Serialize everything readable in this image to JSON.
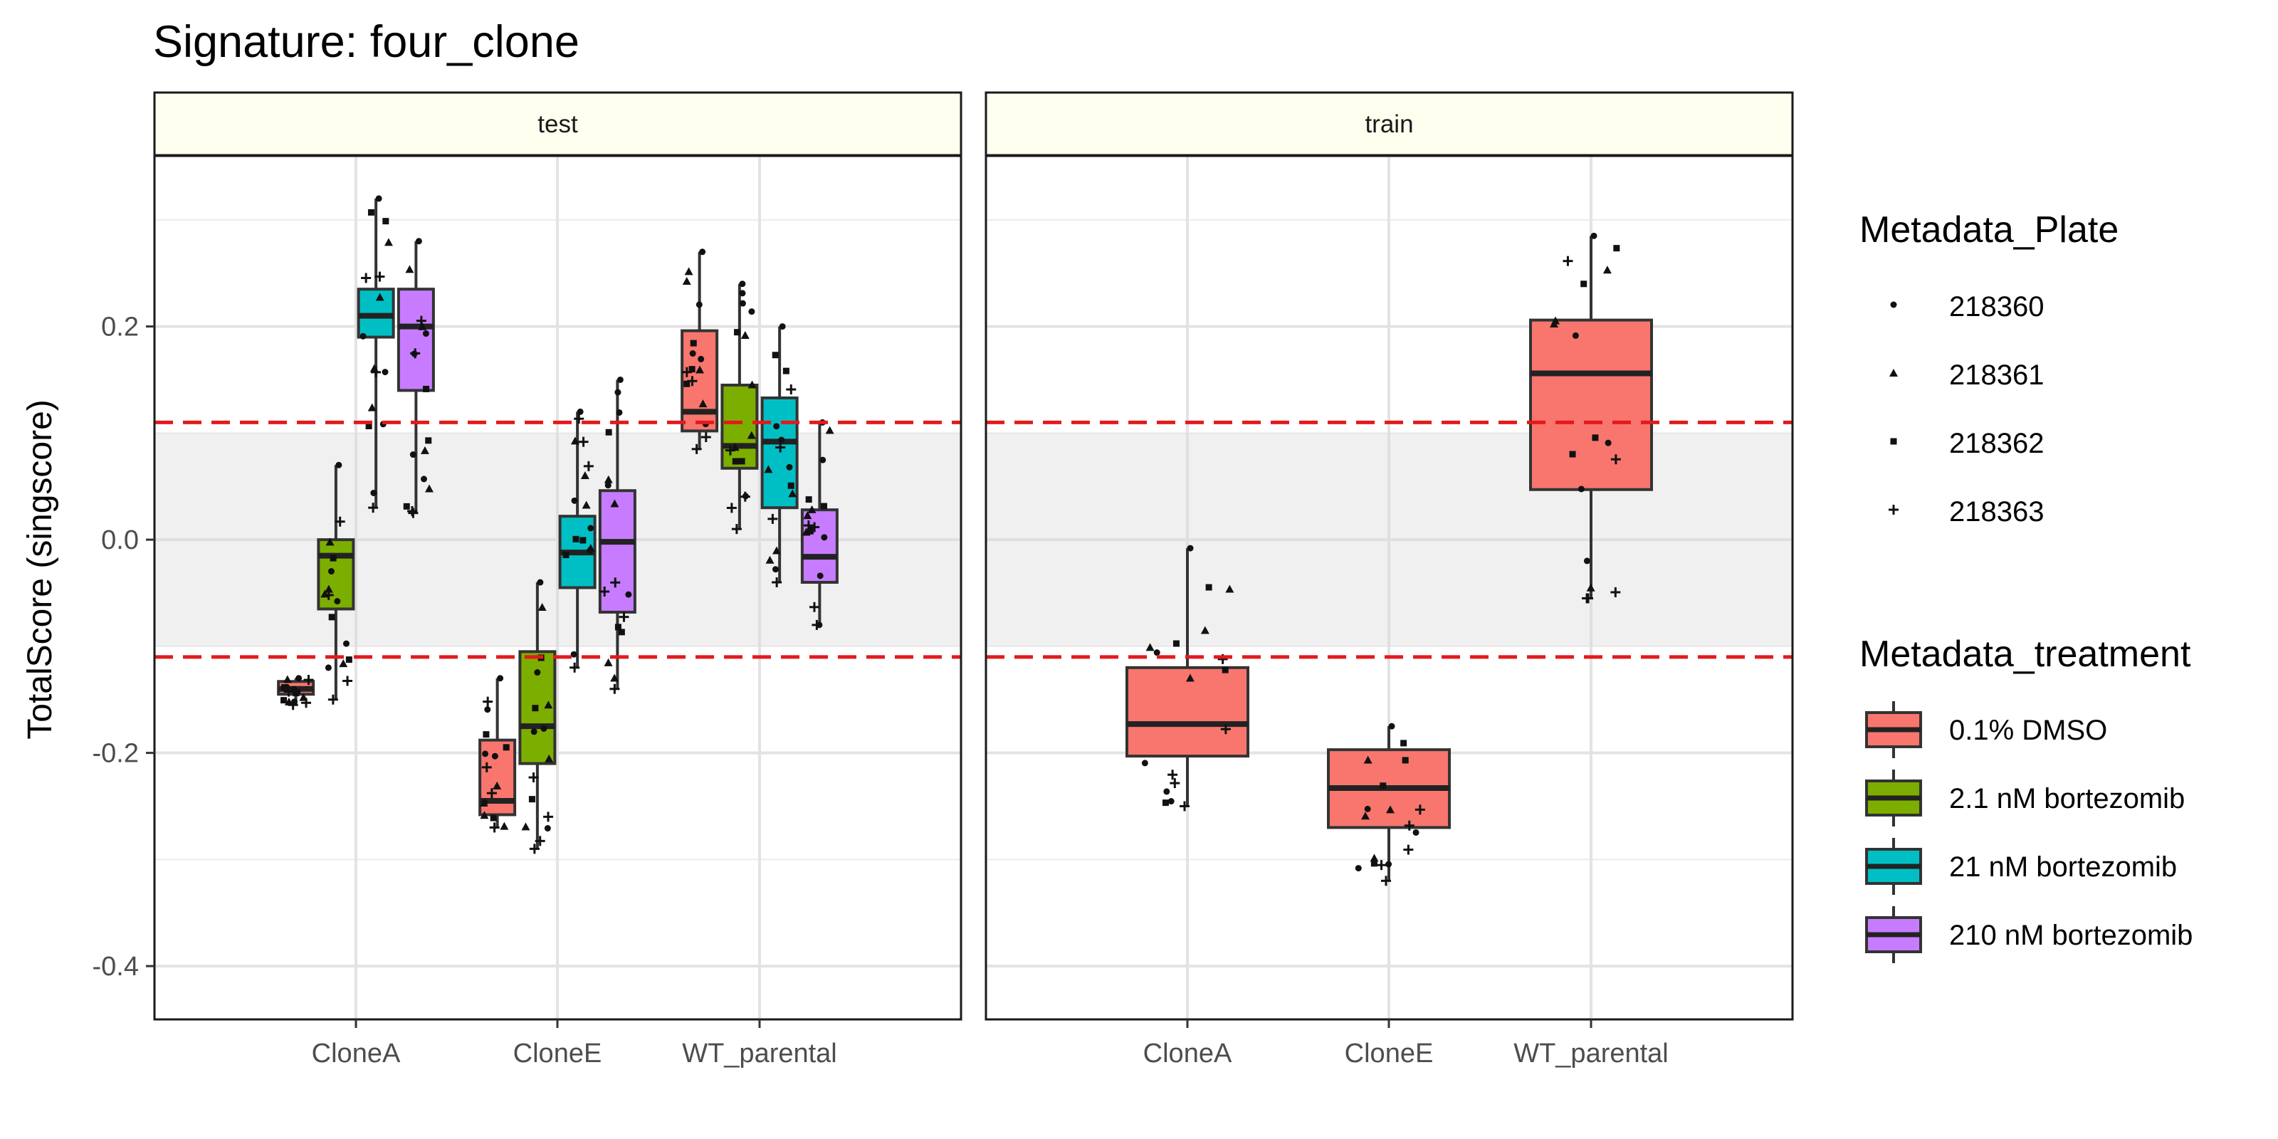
{
  "chart_data": {
    "type": "box",
    "title": "Signature: four_clone",
    "ylabel": "TotalScore (singscore)",
    "xlabel": "",
    "ylim": [
      -0.45,
      0.36
    ],
    "yticks": [
      0.2,
      0.0,
      -0.2,
      -0.4
    ],
    "ytick_labels": [
      "0.2",
      "0.0",
      "-0.2",
      "-0.4"
    ],
    "categories": [
      "CloneA",
      "CloneE",
      "WT_parental"
    ],
    "threshold_lines": [
      0.11,
      -0.11
    ],
    "band": [
      -0.1,
      0.1
    ],
    "colors": {
      "0.1% DMSO": "#F8766D",
      "2.1 nM bortezomib": "#7CAE00",
      "21 nM bortezomib": "#00BFC4",
      "210 nM bortezomib": "#C77CFF",
      "threshold": "#E31A1C"
    },
    "panels": [
      {
        "strip": "test",
        "boxes": [
          {
            "category": "CloneA",
            "treatment": "0.1% DMSO",
            "min": -0.155,
            "q1": -0.145,
            "median": -0.14,
            "q3": -0.133,
            "max": -0.13
          },
          {
            "category": "CloneA",
            "treatment": "2.1 nM bortezomib",
            "min": -0.15,
            "q1": -0.065,
            "median": -0.015,
            "q3": 0.0,
            "max": 0.07
          },
          {
            "category": "CloneA",
            "treatment": "21 nM bortezomib",
            "min": 0.03,
            "q1": 0.19,
            "median": 0.21,
            "q3": 0.235,
            "max": 0.32
          },
          {
            "category": "CloneA",
            "treatment": "210 nM bortezomib",
            "min": 0.025,
            "q1": 0.14,
            "median": 0.2,
            "q3": 0.235,
            "max": 0.28
          },
          {
            "category": "CloneE",
            "treatment": "0.1% DMSO",
            "min": -0.27,
            "q1": -0.258,
            "median": -0.245,
            "q3": -0.188,
            "max": -0.13
          },
          {
            "category": "CloneE",
            "treatment": "2.1 nM bortezomib",
            "min": -0.29,
            "q1": -0.21,
            "median": -0.175,
            "q3": -0.105,
            "max": -0.04
          },
          {
            "category": "CloneE",
            "treatment": "21 nM bortezomib",
            "min": -0.12,
            "q1": -0.045,
            "median": -0.012,
            "q3": 0.022,
            "max": 0.12
          },
          {
            "category": "CloneE",
            "treatment": "210 nM bortezomib",
            "min": -0.14,
            "q1": -0.068,
            "median": -0.002,
            "q3": 0.046,
            "max": 0.15
          },
          {
            "category": "WT_parental",
            "treatment": "0.1% DMSO",
            "min": 0.085,
            "q1": 0.102,
            "median": 0.12,
            "q3": 0.196,
            "max": 0.27
          },
          {
            "category": "WT_parental",
            "treatment": "2.1 nM bortezomib",
            "min": 0.01,
            "q1": 0.067,
            "median": 0.088,
            "q3": 0.145,
            "max": 0.24
          },
          {
            "category": "WT_parental",
            "treatment": "21 nM bortezomib",
            "min": -0.04,
            "q1": 0.03,
            "median": 0.092,
            "q3": 0.133,
            "max": 0.2
          },
          {
            "category": "WT_parental",
            "treatment": "210 nM bortezomib",
            "min": -0.08,
            "q1": -0.04,
            "median": -0.016,
            "q3": 0.028,
            "max": 0.11
          }
        ]
      },
      {
        "strip": "train",
        "boxes": [
          {
            "category": "CloneA",
            "treatment": "0.1% DMSO",
            "min": -0.25,
            "q1": -0.203,
            "median": -0.173,
            "q3": -0.12,
            "max": -0.008
          },
          {
            "category": "CloneE",
            "treatment": "0.1% DMSO",
            "min": -0.32,
            "q1": -0.27,
            "median": -0.233,
            "q3": -0.197,
            "max": -0.175
          },
          {
            "category": "WT_parental",
            "treatment": "0.1% DMSO",
            "min": -0.055,
            "q1": 0.047,
            "median": 0.156,
            "q3": 0.206,
            "max": 0.285
          }
        ]
      }
    ],
    "legends": [
      {
        "title": "Metadata_Plate",
        "items": [
          "218360",
          "218361",
          "218362",
          "218363"
        ]
      },
      {
        "title": "Metadata_treatment",
        "items": [
          "0.1% DMSO",
          "2.1 nM bortezomib",
          "21 nM bortezomib",
          "210 nM bortezomib"
        ]
      }
    ],
    "grid": true
  }
}
